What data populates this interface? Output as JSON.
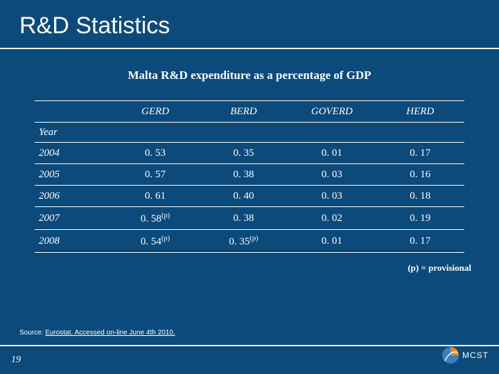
{
  "colors": {
    "background": "#0b4a7a",
    "text": "#ffffff",
    "rule": "#ffffff",
    "logo_orange": "#f18a1f",
    "logo_blue": "#3a7fc2"
  },
  "title": "R&D Statistics",
  "subtitle": "Malta R&D expenditure as a percentage of GDP",
  "table": {
    "year_label": "Year",
    "columns": [
      "GERD",
      "BERD",
      "GOVERD",
      "HERD"
    ],
    "col_widths": [
      "110px",
      "127px",
      "127px",
      "127px",
      "127px"
    ],
    "rows": [
      {
        "year": "2004",
        "cells": [
          "0. 53",
          "0. 35",
          "0. 01",
          "0. 17"
        ],
        "flags": [
          false,
          false,
          false,
          false
        ]
      },
      {
        "year": "2005",
        "cells": [
          "0. 57",
          "0. 38",
          "0. 03",
          "0. 16"
        ],
        "flags": [
          false,
          false,
          false,
          false
        ]
      },
      {
        "year": "2006",
        "cells": [
          "0. 61",
          "0. 40",
          "0. 03",
          "0. 18"
        ],
        "flags": [
          false,
          false,
          false,
          false
        ]
      },
      {
        "year": "2007",
        "cells": [
          "0. 58",
          "0. 38",
          "0. 02",
          "0. 19"
        ],
        "flags": [
          true,
          false,
          false,
          false
        ]
      },
      {
        "year": "2008",
        "cells": [
          "0. 54",
          "0. 35",
          "0. 01",
          "0. 17"
        ],
        "flags": [
          true,
          true,
          false,
          false
        ]
      }
    ]
  },
  "legend": "(p) = provisional",
  "source_label": "Source:",
  "source_text": "Eurostat. Accessed on-line June 4th 2010.",
  "page_number": "19",
  "logo_label": "MCST"
}
